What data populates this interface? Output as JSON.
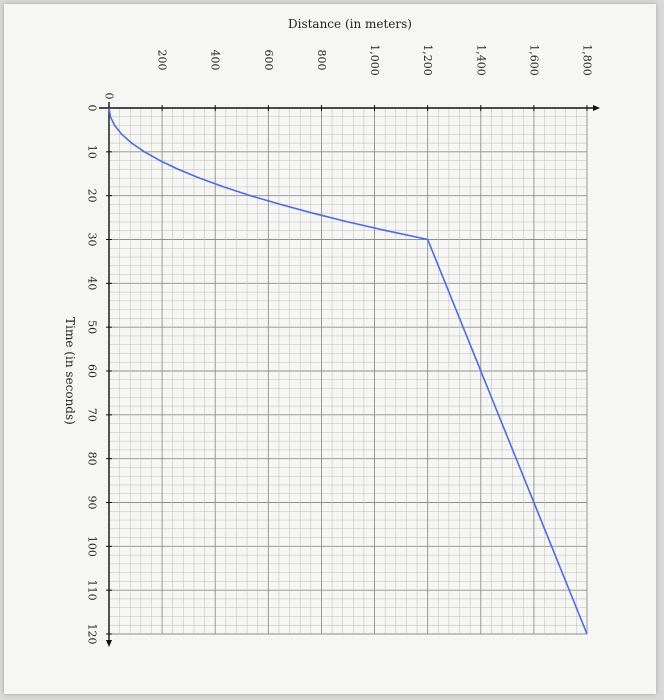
{
  "chart_data": {
    "type": "line",
    "xlabel": "Time (in seconds)",
    "ylabel": "Distance (in meters)",
    "xlim": [
      0,
      120
    ],
    "ylim": [
      0,
      1800
    ],
    "x_ticks": [
      0,
      10,
      20,
      30,
      40,
      50,
      60,
      70,
      80,
      90,
      100,
      110,
      120
    ],
    "x_tick_labels": [
      "0",
      "10",
      "20",
      "30",
      "40",
      "50",
      "60",
      "70",
      "80",
      "90",
      "100",
      "110",
      "120"
    ],
    "y_ticks": [
      0,
      200,
      400,
      600,
      800,
      1000,
      1200,
      1400,
      1600,
      1800
    ],
    "y_tick_labels": [
      "0",
      "200",
      "400",
      "600",
      "800",
      "1,000",
      "1,200",
      "1,400",
      "1,600",
      "1,800"
    ],
    "grid": true,
    "line_color": "#4a6fdc",
    "series": [
      {
        "x": [
          0,
          2,
          4,
          6,
          8,
          10,
          12,
          14,
          16,
          18,
          20,
          22,
          24,
          26,
          28,
          30,
          120
        ],
        "y": [
          0,
          5.3,
          21.3,
          48,
          85.3,
          133.3,
          192,
          261.3,
          341.3,
          432,
          533.3,
          645.3,
          768,
          901.3,
          1045.3,
          1200,
          1800
        ]
      }
    ]
  }
}
